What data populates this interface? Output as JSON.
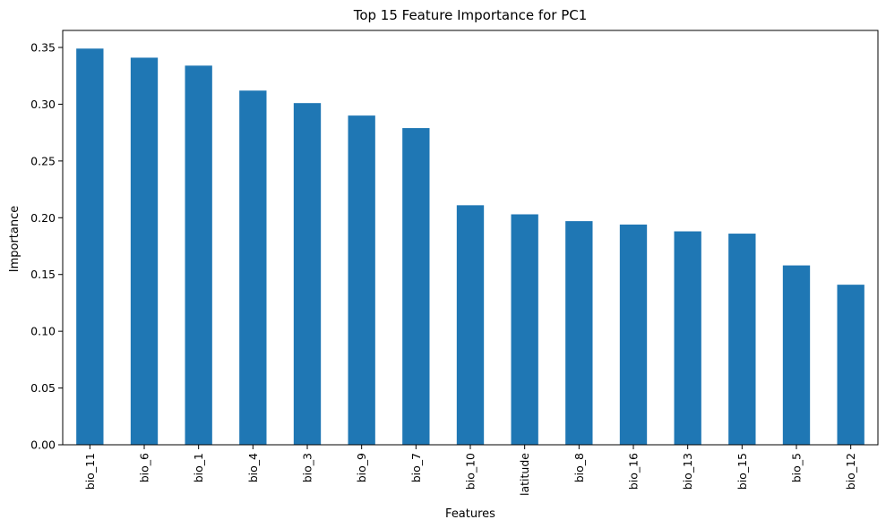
{
  "chart_data": {
    "type": "bar",
    "title": "Top 15 Feature Importance for PC1",
    "xlabel": "Features",
    "ylabel": "Importance",
    "categories": [
      "bio_11",
      "bio_6",
      "bio_1",
      "bio_4",
      "bio_3",
      "bio_9",
      "bio_7",
      "bio_10",
      "latitude",
      "bio_8",
      "bio_16",
      "bio_13",
      "bio_15",
      "bio_5",
      "bio_12"
    ],
    "values": [
      0.349,
      0.341,
      0.334,
      0.312,
      0.301,
      0.29,
      0.279,
      0.211,
      0.203,
      0.197,
      0.194,
      0.188,
      0.186,
      0.158,
      0.141
    ],
    "ylim": [
      0,
      0.365
    ],
    "yticks": [
      "0.00",
      "0.05",
      "0.10",
      "0.15",
      "0.20",
      "0.25",
      "0.30",
      "0.35"
    ],
    "bar_color": "#1f77b4",
    "grid": false,
    "legend": "none"
  }
}
